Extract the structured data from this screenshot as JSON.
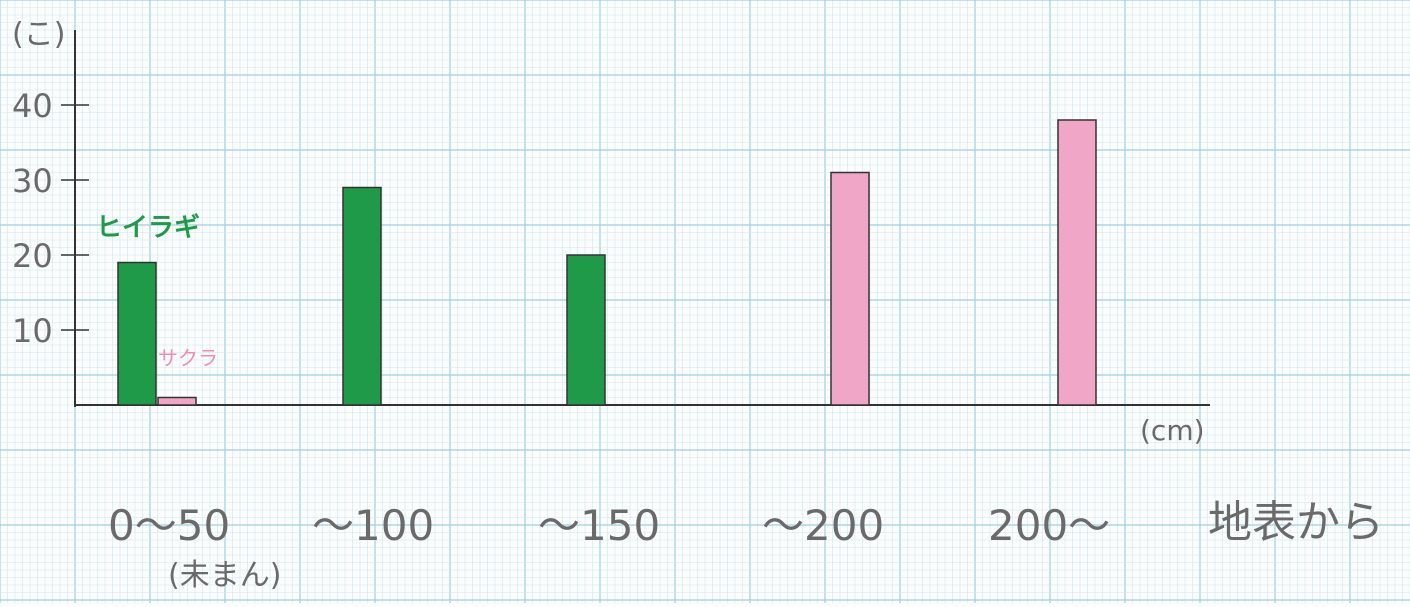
{
  "chart_data": {
    "type": "bar",
    "title": "",
    "ylabel": "(こ)",
    "xlabel": "(cm)",
    "x_caption": "地表から",
    "categories": [
      "0〜50",
      "〜100",
      "〜150",
      "〜200",
      "200〜"
    ],
    "category_sublabels": [
      "(未まん)",
      "",
      "",
      "",
      ""
    ],
    "y_ticks": [
      10,
      20,
      30,
      40
    ],
    "ylim": [
      0,
      50
    ],
    "grid": true,
    "legend": "inline labels near first group",
    "series": [
      {
        "name": "ヒイラギ",
        "color": "#1e9a48",
        "values": [
          19,
          29,
          20,
          0,
          0
        ]
      },
      {
        "name": "サクラ",
        "color": "#f0a6c6",
        "values": [
          1,
          0,
          0,
          31,
          38
        ]
      }
    ]
  },
  "colors": {
    "grid_minor": "#cfe6ec",
    "grid_major": "#9fcfdd",
    "axis": "#333333",
    "handwriting": "#6a6a6a"
  }
}
